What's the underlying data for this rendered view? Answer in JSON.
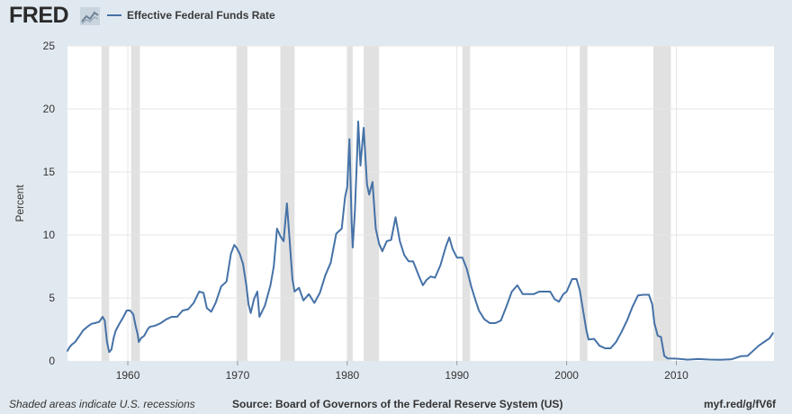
{
  "header": {
    "logo_text": "FRED",
    "logo_icon": "line-chart-icon"
  },
  "chart_data": {
    "type": "line",
    "title": "",
    "xlabel": "",
    "ylabel": "Percent",
    "xlim": [
      1954.5,
      2018.9
    ],
    "ylim": [
      0,
      25
    ],
    "x_ticks": [
      1960,
      1970,
      1980,
      1990,
      2000,
      2010
    ],
    "y_ticks": [
      0,
      5,
      10,
      15,
      20,
      25
    ],
    "grid": true,
    "legend_position": "top-left",
    "colors": {
      "line": "#4572a7",
      "plot_background": "#ffffff",
      "recession_shading": "#e1e1e1",
      "gridline": "#e6e6e6"
    },
    "recessions": [
      [
        1957.6,
        1958.3
      ],
      [
        1960.3,
        1961.1
      ],
      [
        1969.9,
        1970.9
      ],
      [
        1973.9,
        1975.2
      ],
      [
        1980.0,
        1980.5
      ],
      [
        1981.5,
        1982.9
      ],
      [
        1990.5,
        1991.2
      ],
      [
        2001.2,
        2001.9
      ],
      [
        2007.9,
        2009.5
      ]
    ],
    "series": [
      {
        "name": "Effective Federal Funds Rate",
        "x": [
          1954.5,
          1954.7,
          1954.9,
          1955.2,
          1955.6,
          1955.9,
          1956.3,
          1956.7,
          1957.0,
          1957.4,
          1957.7,
          1957.9,
          1958.1,
          1958.3,
          1958.5,
          1958.7,
          1958.9,
          1959.2,
          1959.6,
          1959.9,
          1960.2,
          1960.5,
          1960.7,
          1960.9,
          1961.0,
          1961.2,
          1961.5,
          1961.8,
          1962.0,
          1962.5,
          1963.0,
          1963.5,
          1964.0,
          1964.5,
          1965.0,
          1965.5,
          1966.0,
          1966.5,
          1966.9,
          1967.2,
          1967.6,
          1968.0,
          1968.5,
          1969.0,
          1969.4,
          1969.7,
          1969.9,
          1970.2,
          1970.5,
          1970.8,
          1971.0,
          1971.2,
          1971.5,
          1971.8,
          1972.0,
          1972.5,
          1973.0,
          1973.3,
          1973.6,
          1973.9,
          1974.2,
          1974.5,
          1974.8,
          1975.0,
          1975.2,
          1975.6,
          1976.0,
          1976.5,
          1977.0,
          1977.5,
          1978.0,
          1978.5,
          1979.0,
          1979.5,
          1979.8,
          1980.0,
          1980.2,
          1980.4,
          1980.5,
          1980.7,
          1980.9,
          1981.0,
          1981.2,
          1981.5,
          1981.8,
          1982.0,
          1982.3,
          1982.6,
          1982.9,
          1983.2,
          1983.6,
          1984.0,
          1984.4,
          1984.8,
          1985.2,
          1985.6,
          1986.0,
          1986.5,
          1986.9,
          1987.2,
          1987.6,
          1988.0,
          1988.5,
          1989.0,
          1989.3,
          1989.6,
          1990.0,
          1990.5,
          1990.9,
          1991.3,
          1991.7,
          1992.0,
          1992.5,
          1993.0,
          1993.5,
          1994.0,
          1994.5,
          1995.0,
          1995.5,
          1996.0,
          1996.5,
          1997.0,
          1997.5,
          1998.0,
          1998.5,
          1998.9,
          1999.3,
          1999.7,
          2000.0,
          2000.5,
          2000.9,
          2001.2,
          2001.5,
          2001.8,
          2002.0,
          2002.5,
          2003.0,
          2003.5,
          2004.0,
          2004.5,
          2005.0,
          2005.5,
          2006.0,
          2006.5,
          2007.0,
          2007.5,
          2007.8,
          2008.0,
          2008.3,
          2008.6,
          2008.9,
          2009.2,
          2010.0,
          2011.0,
          2012.0,
          2013.0,
          2014.0,
          2015.0,
          2015.9,
          2016.5,
          2017.0,
          2017.5,
          2018.0,
          2018.5,
          2018.8
        ],
        "values": [
          0.8,
          1.1,
          1.3,
          1.5,
          2.0,
          2.4,
          2.7,
          2.95,
          3.0,
          3.1,
          3.5,
          3.2,
          1.5,
          0.7,
          0.9,
          1.8,
          2.4,
          2.9,
          3.5,
          4.0,
          4.0,
          3.7,
          2.8,
          2.1,
          1.5,
          1.8,
          2.0,
          2.5,
          2.7,
          2.8,
          3.0,
          3.3,
          3.5,
          3.5,
          4.0,
          4.1,
          4.6,
          5.5,
          5.4,
          4.2,
          3.9,
          4.6,
          5.9,
          6.3,
          8.5,
          9.2,
          9.0,
          8.5,
          7.7,
          6.0,
          4.5,
          3.8,
          4.9,
          5.5,
          3.5,
          4.4,
          6.0,
          7.5,
          10.5,
          9.9,
          9.5,
          12.5,
          9.0,
          6.5,
          5.5,
          5.8,
          4.8,
          5.3,
          4.6,
          5.4,
          6.8,
          7.8,
          10.1,
          10.5,
          13.0,
          13.8,
          17.6,
          11.0,
          9.0,
          12.0,
          16.4,
          19.0,
          15.5,
          18.5,
          14.0,
          13.2,
          14.2,
          10.5,
          9.3,
          8.7,
          9.5,
          9.6,
          11.4,
          9.5,
          8.4,
          7.9,
          7.9,
          6.8,
          6.0,
          6.4,
          6.7,
          6.6,
          7.6,
          9.1,
          9.8,
          8.9,
          8.2,
          8.2,
          7.3,
          5.9,
          4.8,
          4.0,
          3.3,
          3.0,
          3.0,
          3.2,
          4.3,
          5.5,
          6.0,
          5.3,
          5.3,
          5.3,
          5.5,
          5.5,
          5.5,
          4.9,
          4.7,
          5.3,
          5.5,
          6.5,
          6.5,
          5.6,
          4.0,
          2.4,
          1.7,
          1.75,
          1.2,
          1.0,
          1.0,
          1.5,
          2.3,
          3.2,
          4.3,
          5.2,
          5.25,
          5.25,
          4.5,
          3.0,
          2.0,
          1.9,
          0.4,
          0.2,
          0.18,
          0.1,
          0.15,
          0.11,
          0.09,
          0.12,
          0.38,
          0.4,
          0.8,
          1.2,
          1.5,
          1.8,
          2.2
        ]
      }
    ]
  },
  "footer": {
    "note": "Shaded areas indicate U.S. recessions",
    "source": "Source: Board of Governors of the Federal Reserve System (US)",
    "link": "myf.red/g/fV6f"
  }
}
